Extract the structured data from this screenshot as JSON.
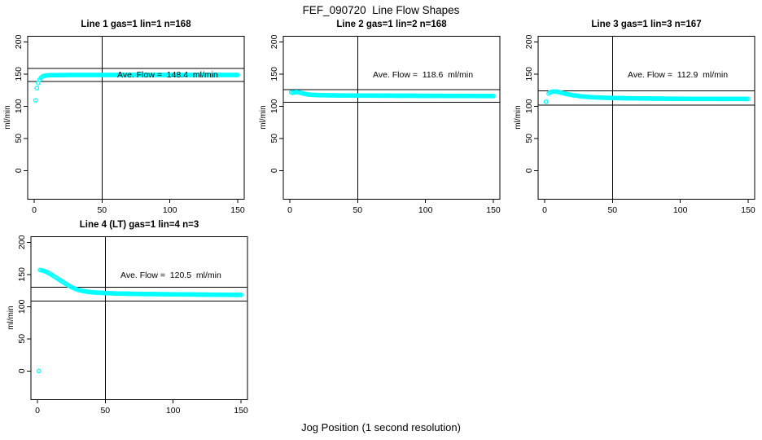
{
  "page": {
    "title": "FEF_090720  Line Flow Shapes",
    "xlabel": "Jog Position (1 second resolution)"
  },
  "axes": {
    "ylabel": "ml/min",
    "yticks": [
      0,
      50,
      100,
      150,
      200
    ],
    "xticks": [
      0,
      50,
      100,
      150
    ],
    "xlim": [
      -5,
      155
    ],
    "ylim": [
      -44,
      209
    ],
    "vline_x": 50,
    "grid": false,
    "point_color": "#00FFFF",
    "axis_color": "#000000",
    "background": "#FFFFFF"
  },
  "chart_data": [
    {
      "type": "scatter",
      "title": "Line 1 gas=1 lin=1 n=168",
      "annotation": "Ave. Flow =  148.4  ml/min",
      "ave_flow": 148.4,
      "n": 168,
      "ref_lines": [
        158.5,
        138.5
      ],
      "outliers": [
        [
          1,
          109
        ],
        [
          2,
          128
        ]
      ],
      "profile": [
        [
          3,
          136
        ],
        [
          4,
          141
        ],
        [
          5,
          144
        ],
        [
          6,
          146
        ],
        [
          8,
          147.5
        ],
        [
          12,
          148.2
        ],
        [
          30,
          148.5
        ],
        [
          150,
          148.5
        ]
      ]
    },
    {
      "type": "scatter",
      "title": "Line 2 gas=1 lin=2 n=168",
      "annotation": "Ave. Flow =  118.6  ml/min",
      "ave_flow": 118.6,
      "n": 168,
      "ref_lines": [
        126,
        106
      ],
      "outliers": [
        [
          1,
          121.5
        ]
      ],
      "profile": [
        [
          2,
          120.8
        ],
        [
          3,
          121.5
        ],
        [
          5,
          122
        ],
        [
          7,
          121.3
        ],
        [
          10,
          119.5
        ],
        [
          14,
          118
        ],
        [
          20,
          117.2
        ],
        [
          30,
          116.8
        ],
        [
          60,
          116.4
        ],
        [
          100,
          116.1
        ],
        [
          150,
          115.8
        ]
      ]
    },
    {
      "type": "scatter",
      "title": "Line 3 gas=1 lin=3 n=167",
      "annotation": "Ave. Flow =  112.9  ml/min",
      "ave_flow": 112.9,
      "n": 167,
      "ref_lines": [
        123.5,
        101.5
      ],
      "outliers": [
        [
          1,
          107
        ]
      ],
      "profile": [
        [
          3,
          119.5
        ],
        [
          4,
          121.5
        ],
        [
          6,
          122.8
        ],
        [
          9,
          122.5
        ],
        [
          12,
          121
        ],
        [
          16,
          119
        ],
        [
          21,
          117
        ],
        [
          27,
          115.3
        ],
        [
          34,
          114
        ],
        [
          45,
          113
        ],
        [
          60,
          112.3
        ],
        [
          80,
          111.8
        ],
        [
          110,
          111.4
        ],
        [
          150,
          111.2
        ]
      ]
    },
    {
      "type": "scatter",
      "title": "Line 4 (LT) gas=1 lin=4 n=3",
      "annotation": "Ave. Flow =  120.5  ml/min",
      "ave_flow": 120.5,
      "n": 3,
      "ref_lines": [
        130,
        108.5
      ],
      "outliers": [
        [
          1,
          0
        ]
      ],
      "profile": [
        [
          2,
          157
        ],
        [
          4,
          156
        ],
        [
          6,
          154.5
        ],
        [
          8,
          152.5
        ],
        [
          10,
          150
        ],
        [
          13,
          146
        ],
        [
          16,
          142
        ],
        [
          19,
          138
        ],
        [
          22,
          134
        ],
        [
          25,
          130.5
        ],
        [
          28,
          127.5
        ],
        [
          31,
          125.5
        ],
        [
          34,
          124
        ],
        [
          38,
          122.8
        ],
        [
          43,
          121.8
        ],
        [
          50,
          121
        ],
        [
          60,
          120.3
        ],
        [
          75,
          119.7
        ],
        [
          95,
          119.2
        ],
        [
          120,
          118.7
        ],
        [
          150,
          118.2
        ]
      ]
    }
  ]
}
